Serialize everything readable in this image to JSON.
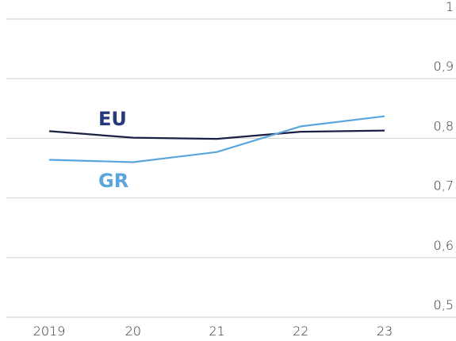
{
  "chart_data": {
    "type": "line",
    "categories": [
      "2019",
      "20",
      "21",
      "22",
      "23"
    ],
    "series": [
      {
        "name": "EU",
        "color": "#1b1f45",
        "label_color": "#253a7a",
        "values": [
          0.812,
          0.801,
          0.799,
          0.811,
          0.813
        ]
      },
      {
        "name": "GR",
        "color": "#5aa5dc",
        "label_color": "#5aa5dc",
        "values": [
          0.764,
          0.76,
          0.777,
          0.82,
          0.837
        ]
      }
    ],
    "ylim": [
      0.5,
      1
    ],
    "yticks": [
      {
        "value": 0.5,
        "label": "0,5"
      },
      {
        "value": 0.6,
        "label": "0,6"
      },
      {
        "value": 0.7,
        "label": "0,7"
      },
      {
        "value": 0.8,
        "label": "0,8"
      },
      {
        "value": 0.9,
        "label": "0,9"
      },
      1
    ],
    "grid": true
  }
}
